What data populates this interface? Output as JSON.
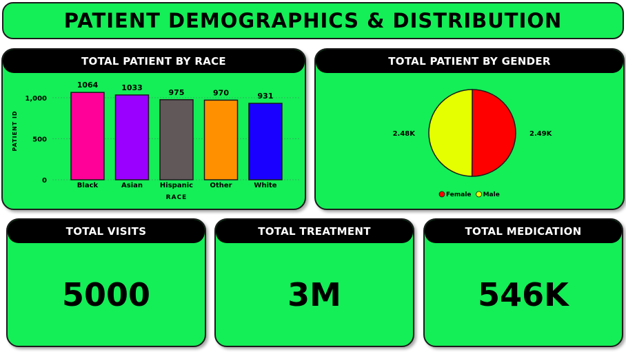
{
  "title": "PATIENT DEMOGRAPHICS & DISTRIBUTION",
  "race_card": {
    "header": "TOTAL PATIENT BY RACE"
  },
  "gender_card": {
    "header": "TOTAL PATIENT BY GENDER"
  },
  "kpis": [
    {
      "header": "TOTAL VISITS",
      "value": "5000"
    },
    {
      "header": "TOTAL TREATMENT",
      "value": "3M"
    },
    {
      "header": "TOTAL MEDICATION",
      "value": "546K"
    }
  ],
  "colors": {
    "background": "#14ee57",
    "header": "#000000"
  },
  "chart_data": [
    {
      "type": "bar",
      "title": "TOTAL PATIENT BY RACE",
      "categories": [
        "Black",
        "Asian",
        "Hispanic",
        "Other",
        "White"
      ],
      "values": [
        1064,
        1033,
        975,
        970,
        931
      ],
      "data_labels": [
        "1064",
        "1033",
        "975",
        "970",
        "931"
      ],
      "colors": [
        "#ff0099",
        "#9900ff",
        "#615859",
        "#ff9100",
        "#1900ff"
      ],
      "xlabel": "RACE",
      "ylabel": "PATIENT ID",
      "ylim": [
        0,
        1200
      ],
      "yticks": [
        0,
        500,
        1000
      ],
      "ytick_labels": [
        "0",
        "500",
        "1,000"
      ],
      "grid": true
    },
    {
      "type": "pie",
      "title": "TOTAL PATIENT BY GENDER",
      "slices": [
        {
          "label": "Female",
          "value": 2490,
          "display": "2.49K",
          "color": "#ff0000"
        },
        {
          "label": "Male",
          "value": 2480,
          "display": "2.48K",
          "color": "#e5ff00"
        }
      ],
      "legend": "bottom-center"
    }
  ]
}
